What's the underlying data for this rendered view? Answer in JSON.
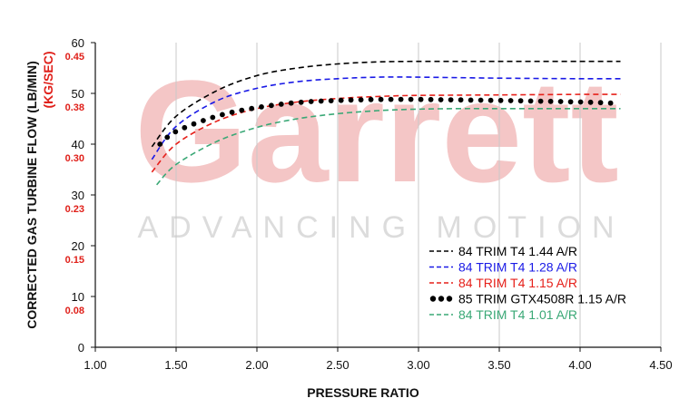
{
  "watermark": {
    "brand": "Garrett",
    "tagline": "ADVANCING MOTION"
  },
  "chart_data": {
    "type": "line",
    "title": "",
    "xlabel": "PRESSURE RATIO",
    "ylabel": "CORRECTED GAS TURBINE FLOW (LB/MIN)",
    "ylabel_secondary": "(KG/SEC)",
    "xlim": [
      1.0,
      4.5
    ],
    "ylim": [
      0,
      60
    ],
    "x_ticks": [
      1.0,
      1.5,
      2.0,
      2.5,
      3.0,
      3.5,
      4.0,
      4.5
    ],
    "x_tick_labels": [
      "1.00",
      "1.50",
      "2.00",
      "2.50",
      "3.00",
      "3.50",
      "4.00",
      "4.50"
    ],
    "y_ticks": [
      0,
      10,
      20,
      30,
      40,
      50,
      60
    ],
    "y_tick_labels": [
      "0",
      "10",
      "20",
      "30",
      "40",
      "50",
      "60"
    ],
    "y_secondary_labels": [
      {
        "y": 10,
        "label": "0.08"
      },
      {
        "y": 20,
        "label": "0.15"
      },
      {
        "y": 30,
        "label": "0.23"
      },
      {
        "y": 40,
        "label": "0.30"
      },
      {
        "y": 50,
        "label": "0.38"
      },
      {
        "y": 60,
        "label": "0.45"
      }
    ],
    "grid": {
      "vertical": true,
      "horizontal": false
    },
    "legend_position": "bottom-right",
    "series": [
      {
        "name": "84 TRIM T4 1.44 A/R",
        "color": "#000000",
        "style": "dashed",
        "x": [
          1.35,
          1.5,
          1.75,
          2.0,
          2.25,
          2.5,
          2.75,
          3.0,
          3.5,
          4.0,
          4.25
        ],
        "y": [
          39.5,
          45.5,
          50.5,
          53.5,
          55.0,
          55.8,
          56.2,
          56.3,
          56.3,
          56.3,
          56.3
        ]
      },
      {
        "name": "84 TRIM T4 1.28 A/R",
        "color": "#1a1ae6",
        "style": "dashed",
        "x": [
          1.35,
          1.5,
          1.75,
          2.0,
          2.25,
          2.5,
          2.75,
          3.0,
          3.5,
          4.0,
          4.25
        ],
        "y": [
          37.0,
          43.5,
          48.5,
          51.0,
          52.3,
          52.9,
          53.2,
          53.2,
          53.0,
          52.9,
          52.9
        ]
      },
      {
        "name": "84 TRIM T4 1.15 A/R",
        "color": "#e6201a",
        "style": "dashed",
        "x": [
          1.35,
          1.5,
          1.75,
          2.0,
          2.25,
          2.5,
          2.75,
          3.0,
          3.5,
          4.0,
          4.25
        ],
        "y": [
          34.5,
          40.0,
          44.5,
          47.0,
          48.3,
          49.0,
          49.4,
          49.6,
          49.7,
          49.8,
          49.8
        ]
      },
      {
        "name": "85 TRIM GTX4508R 1.15 A/R",
        "color": "#000000",
        "style": "dotted",
        "x": [
          1.4,
          1.5,
          1.75,
          2.0,
          2.25,
          2.5,
          2.75,
          3.0,
          3.5,
          4.0,
          4.25
        ],
        "y": [
          40.0,
          42.5,
          45.5,
          47.2,
          48.2,
          48.6,
          48.8,
          48.8,
          48.6,
          48.3,
          48.0
        ]
      },
      {
        "name": "84 TRIM T4 1.01 A/R",
        "color": "#3aa876",
        "style": "dashed",
        "x": [
          1.38,
          1.5,
          1.75,
          2.0,
          2.25,
          2.5,
          2.75,
          3.0,
          3.25,
          3.5,
          4.0,
          4.25
        ],
        "y": [
          32.0,
          36.0,
          40.5,
          43.3,
          45.0,
          46.0,
          46.6,
          46.9,
          47.0,
          47.0,
          47.0,
          47.0
        ]
      }
    ]
  }
}
